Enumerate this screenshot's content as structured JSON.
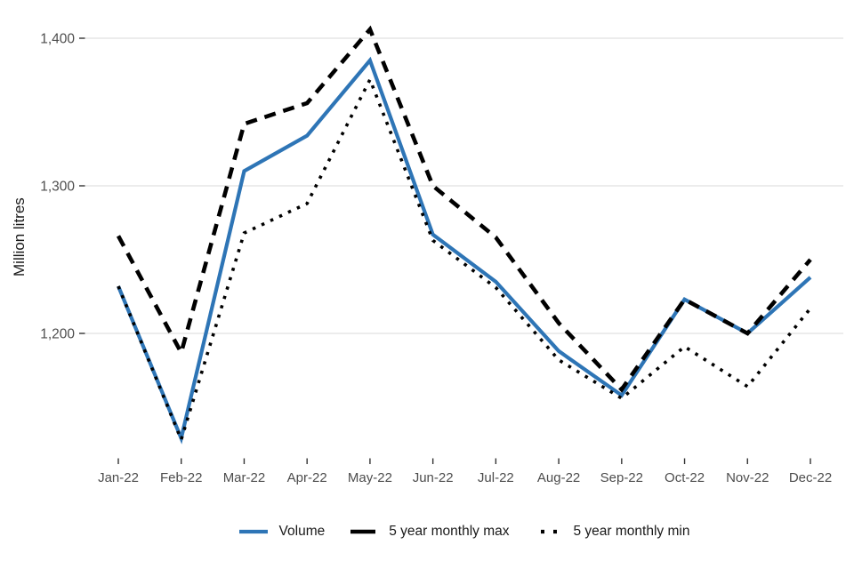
{
  "chart_data": {
    "type": "line",
    "title": "",
    "ylabel": "Million litres",
    "categories": [
      "Jan-22",
      "Feb-22",
      "Mar-22",
      "Apr-22",
      "May-22",
      "Jun-22",
      "Jul-22",
      "Aug-22",
      "Sep-22",
      "Oct-22",
      "Nov-22",
      "Dec-22"
    ],
    "series": [
      {
        "name": "Volume",
        "color": "#2E75B6",
        "style": "solid",
        "values": [
          1232,
          1129,
          1310,
          1334,
          1385,
          1267,
          1235,
          1188,
          1158,
          1223,
          1200,
          1238
        ]
      },
      {
        "name": "5 year monthly max",
        "color": "#000000",
        "style": "dashed",
        "values": [
          1266,
          1187,
          1342,
          1356,
          1406,
          1300,
          1265,
          1207,
          1162,
          1223,
          1200,
          1250
        ]
      },
      {
        "name": "5 year monthly min",
        "color": "#000000",
        "style": "dotted",
        "values": [
          1232,
          1128,
          1268,
          1288,
          1372,
          1263,
          1231,
          1182,
          1156,
          1191,
          1164,
          1217
        ]
      }
    ],
    "y_axis": {
      "ticks": [
        1200,
        1300,
        1400
      ],
      "tick_labels": [
        "1,200",
        "1,300",
        "1,400"
      ],
      "range": [
        1116,
        1420
      ]
    },
    "x_axis": {
      "label": ""
    },
    "grid": "horizontal",
    "legend_position": "bottom",
    "colors": {
      "accent_blue": "#2E75B6",
      "line_black": "#000000",
      "tick_text": "#4d4d4d",
      "gridline": "#e6e6e6"
    }
  }
}
